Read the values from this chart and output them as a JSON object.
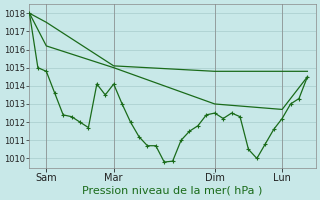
{
  "background_color": "#c8e8e8",
  "grid_color": "#a8cccc",
  "line_color": "#1a6b1a",
  "marker_color": "#1a6b1a",
  "xlabel": "Pression niveau de la mer( hPa )",
  "xlabel_fontsize": 8,
  "ylim": [
    1009.5,
    1018.5
  ],
  "yticks": [
    1010,
    1011,
    1012,
    1013,
    1014,
    1015,
    1016,
    1017,
    1018
  ],
  "xtick_labels": [
    "Sam",
    "Mar",
    "Dim",
    "Lun"
  ],
  "xtick_positions": [
    2,
    10,
    22,
    30
  ],
  "x_total": 34,
  "xlim": [
    0,
    34
  ],
  "smooth1_x": [
    0,
    2,
    10,
    22,
    30,
    33
  ],
  "smooth1_y": [
    1018,
    1017.5,
    1015.1,
    1014.8,
    1014.8,
    1014.8
  ],
  "smooth2_x": [
    0,
    2,
    10,
    22,
    30,
    33
  ],
  "smooth2_y": [
    1018,
    1016.2,
    1015.0,
    1013.0,
    1012.7,
    1014.5
  ],
  "jagged_x": [
    0,
    1,
    2,
    3,
    4,
    5,
    6,
    7,
    8,
    9,
    10,
    11,
    12,
    13,
    14,
    15,
    16,
    17,
    18,
    19,
    20,
    21,
    22,
    23,
    24,
    25,
    26,
    27,
    28,
    29,
    30,
    31,
    32,
    33
  ],
  "jagged_y": [
    1018,
    1015.0,
    1014.8,
    1013.6,
    1012.4,
    1012.3,
    1012.0,
    1011.7,
    1014.1,
    1013.5,
    1014.1,
    1013.0,
    1012.0,
    1011.2,
    1010.7,
    1010.7,
    1009.8,
    1009.85,
    1011.0,
    1011.5,
    1011.8,
    1012.4,
    1012.5,
    1012.2,
    1012.5,
    1012.3,
    1010.5,
    1010.0,
    1010.8,
    1011.6,
    1012.2,
    1013.0,
    1013.3,
    1014.5
  ]
}
